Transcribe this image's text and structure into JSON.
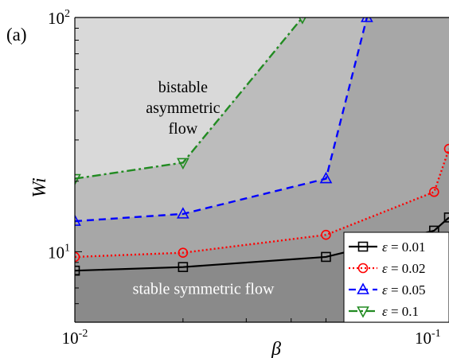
{
  "panel_label": "(a)",
  "colors": {
    "region_stable": "#8a8a8a",
    "region_band1": "#a7a7a7",
    "region_band2": "#bcbcbc",
    "region_bistable": "#d9d9d9",
    "series": [
      "#000000",
      "#ff0000",
      "#0000ff",
      "#228b22"
    ]
  },
  "chart_data": {
    "type": "line",
    "title": "",
    "xlabel": "β",
    "ylabel": "Wi",
    "xscale": "log",
    "yscale": "log",
    "xlim": [
      0.01,
      0.11
    ],
    "ylim": [
      5,
      100
    ],
    "grid": false,
    "legend_position": "bottom-right",
    "x_ticks": [
      {
        "base": "10",
        "exp": "-2",
        "value": 0.01
      },
      {
        "base": "10",
        "exp": "-1",
        "value": 0.1
      }
    ],
    "y_ticks": [
      {
        "base": "10",
        "exp": "1",
        "value": 10
      },
      {
        "base": "10",
        "exp": "2",
        "value": 100
      }
    ],
    "series": [
      {
        "name": "ε = 0.01",
        "eps": "0.01",
        "marker": "square",
        "dash": "solid",
        "points": [
          [
            0.01,
            8.3
          ],
          [
            0.02,
            8.6
          ],
          [
            0.05,
            9.5
          ],
          [
            0.1,
            12.3
          ],
          [
            0.11,
            14.0
          ]
        ]
      },
      {
        "name": "ε = 0.02",
        "eps": "0.02",
        "marker": "circle",
        "dash": "dotted",
        "points": [
          [
            0.01,
            9.5
          ],
          [
            0.02,
            9.9
          ],
          [
            0.05,
            11.8
          ],
          [
            0.1,
            18.0
          ],
          [
            0.11,
            27.5
          ]
        ]
      },
      {
        "name": "ε = 0.05",
        "eps": "0.05",
        "marker": "triangle-up",
        "dash": "dashed",
        "points": [
          [
            0.01,
            13.5
          ],
          [
            0.02,
            14.5
          ],
          [
            0.05,
            20.5
          ],
          [
            0.065,
            100
          ]
        ]
      },
      {
        "name": "ε = 0.1",
        "eps": "0.1",
        "marker": "triangle-down",
        "dash": "dashdot",
        "points": [
          [
            0.01,
            20.5
          ],
          [
            0.02,
            24.0
          ],
          [
            0.043,
            100
          ]
        ]
      }
    ],
    "annotations": [
      {
        "lines": [
          "bistable",
          "asymmetric",
          "flow"
        ],
        "color": "#000000",
        "x": 0.02,
        "y": 48
      },
      {
        "lines": [
          "stable symmetric flow"
        ],
        "color": "#ffffff",
        "x": 0.0228,
        "y": 6.6
      }
    ]
  }
}
